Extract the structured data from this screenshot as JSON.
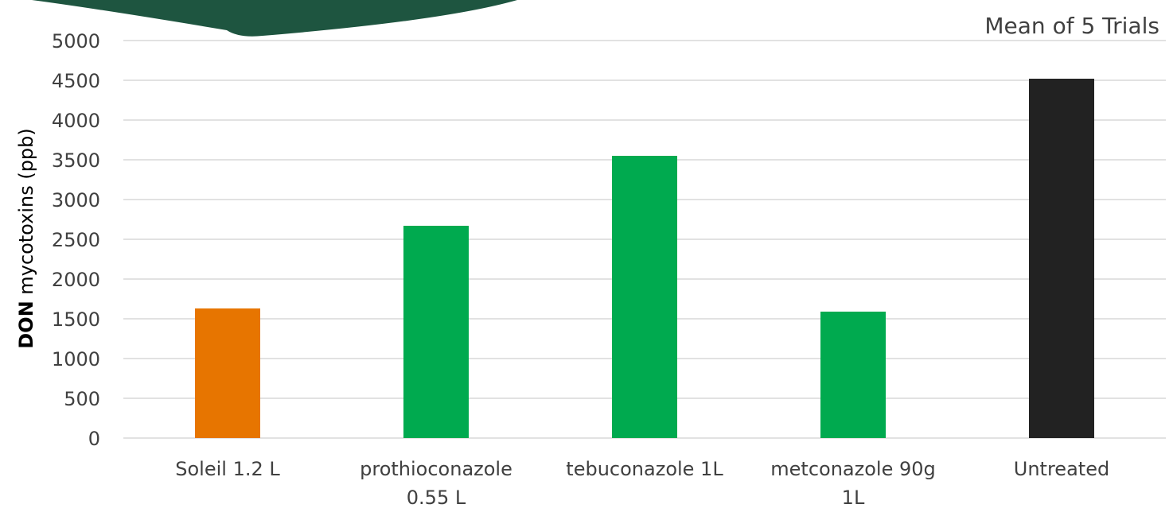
{
  "chart_data": {
    "type": "bar",
    "subtitle": "Mean of 5 Trials",
    "ylabel_bold": "DON",
    "ylabel_rest": " mycotoxins (ppb)",
    "xlabel": "",
    "ylim": [
      0,
      5000
    ],
    "yticks": [
      "0",
      "500",
      "1000",
      "1500",
      "2000",
      "2500",
      "3000",
      "3500",
      "4000",
      "4500",
      "5000"
    ],
    "grid": true,
    "categories": [
      [
        "Soleil 1.2 L"
      ],
      [
        "prothioconazole",
        "0.55 L"
      ],
      [
        "tebuconazole 1L"
      ],
      [
        "metconazole 90g",
        "1L"
      ],
      [
        "Untreated"
      ]
    ],
    "values": [
      1630,
      2670,
      3550,
      1590,
      4520
    ],
    "colors": [
      "#E77500",
      "#00AA4F",
      "#00AA4F",
      "#00AA4F",
      "#222222"
    ]
  },
  "decor": {
    "banner_color": "#1E5540"
  }
}
